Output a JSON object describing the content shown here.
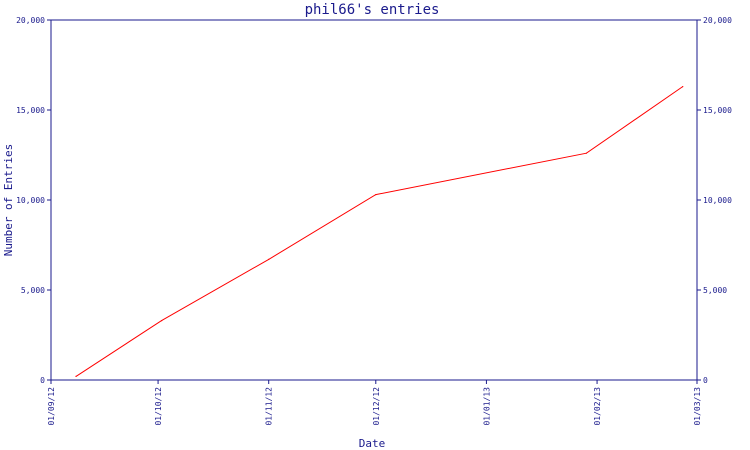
{
  "chart_data": {
    "type": "line",
    "title": "phil66's entries",
    "xlabel": "Date",
    "ylabel": "Number of Entries",
    "ylim": [
      0,
      20000
    ],
    "y_ticks": [
      {
        "value": 0,
        "label": "0"
      },
      {
        "value": 5000,
        "label": "5,000"
      },
      {
        "value": 10000,
        "label": "10,000"
      },
      {
        "value": 15000,
        "label": "15,000"
      },
      {
        "value": 20000,
        "label": "20,000"
      }
    ],
    "xlim": [
      "2012-09-01",
      "2013-03-01"
    ],
    "x_ticks": [
      {
        "date": "2012-09-01",
        "label": "01/09/12"
      },
      {
        "date": "2012-10-01",
        "label": "01/10/12"
      },
      {
        "date": "2012-11-01",
        "label": "01/11/12"
      },
      {
        "date": "2012-12-01",
        "label": "01/12/12"
      },
      {
        "date": "2013-01-01",
        "label": "01/01/13"
      },
      {
        "date": "2013-02-01",
        "label": "01/02/13"
      },
      {
        "date": "2013-03-01",
        "label": "01/03/13"
      }
    ],
    "series": [
      {
        "color": "#ff0000",
        "points": [
          {
            "x": "2012-09-08",
            "y": 200
          },
          {
            "x": "2012-10-02",
            "y": 3300
          },
          {
            "x": "2012-11-01",
            "y": 6700
          },
          {
            "x": "2012-12-01",
            "y": 10300
          },
          {
            "x": "2013-01-29",
            "y": 12600
          },
          {
            "x": "2013-02-25",
            "y": 16300
          }
        ]
      }
    ],
    "grid": false,
    "colors": {
      "axis": "#1a1a8c",
      "text": "#1a1a8c",
      "line": "#ff0000"
    }
  }
}
